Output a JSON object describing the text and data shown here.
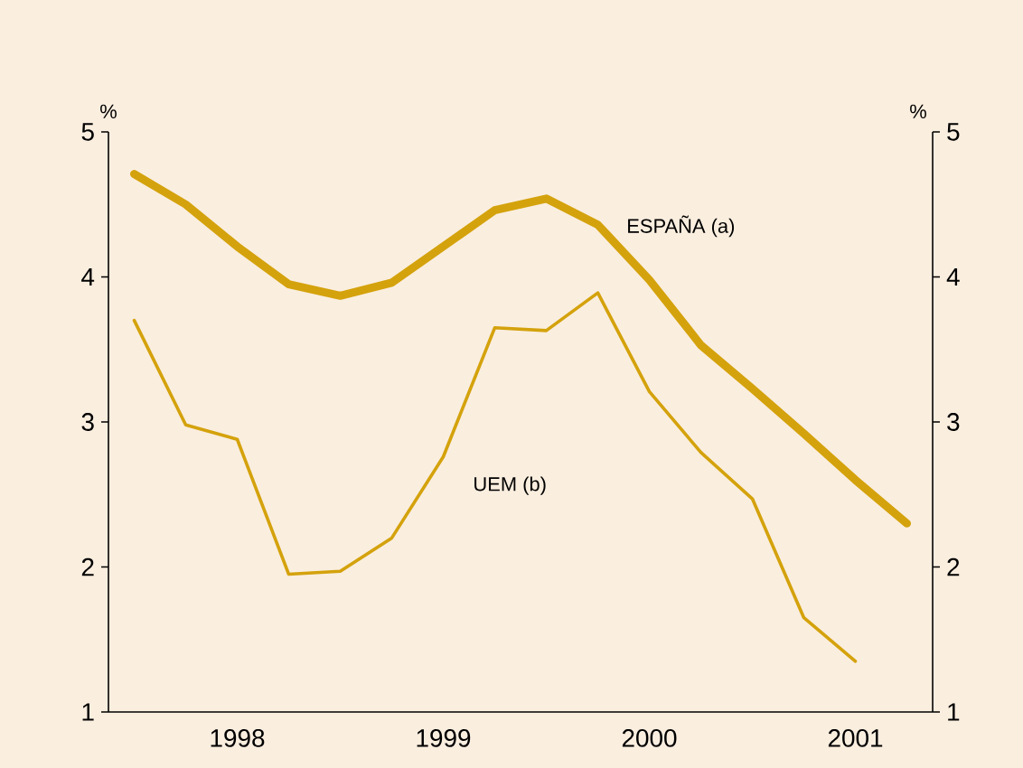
{
  "chart_data": {
    "type": "line",
    "ylabel": "%",
    "y2label": "%",
    "categories": [
      null,
      null,
      "1998",
      null,
      null,
      null,
      "1999",
      null,
      null,
      null,
      "2000",
      null,
      null,
      null,
      "2001",
      null
    ],
    "ylim": [
      1,
      5
    ],
    "yticks": [
      1,
      2,
      3,
      4,
      5
    ],
    "y2lim": [
      1,
      5
    ],
    "y2ticks": [
      1,
      2,
      3,
      4,
      5
    ],
    "series": [
      {
        "name": "ESPAÑA (a)",
        "color": "#d4a20c",
        "values": [
          4.71,
          4.5,
          4.21,
          3.95,
          3.87,
          3.96,
          4.21,
          4.46,
          4.54,
          4.36,
          3.98,
          3.53,
          3.23,
          2.92,
          2.6,
          2.3
        ]
      },
      {
        "name": "UEM (b)",
        "color": "#d4a20c",
        "values": [
          3.7,
          2.98,
          2.88,
          1.95,
          1.97,
          2.2,
          2.76,
          3.65,
          3.63,
          3.89,
          3.21,
          2.79,
          2.47,
          1.65,
          1.35,
          null
        ]
      }
    ]
  }
}
